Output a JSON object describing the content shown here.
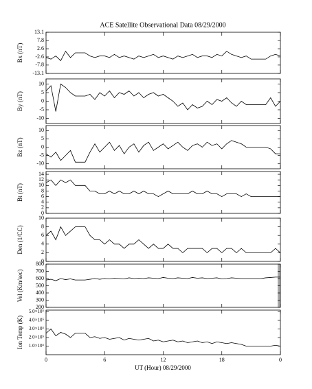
{
  "chart_data": [
    {
      "type": "line",
      "title": "ACE Satellite Observational Data   08/29/2000",
      "ylabel": "Bx (nT)",
      "color": "#000000",
      "x": [
        0,
        0.5,
        1,
        1.5,
        2,
        2.5,
        3,
        3.5,
        4,
        4.5,
        5,
        5.5,
        6,
        6.5,
        7,
        7.5,
        8,
        8.5,
        9,
        9.5,
        10,
        10.5,
        11,
        11.5,
        12,
        12.5,
        13,
        13.5,
        14,
        14.5,
        15,
        15.5,
        16,
        16.5,
        17,
        17.5,
        18,
        18.5,
        19,
        19.5,
        20,
        20.5,
        21,
        21.5,
        22,
        22.5,
        23,
        23.5,
        24
      ],
      "values": [
        -3,
        -4,
        -2,
        -5,
        1,
        -3,
        0,
        0,
        0,
        -2,
        -3,
        -2,
        -2,
        -3,
        -1,
        -3,
        -2,
        -3,
        -4,
        -2,
        -3,
        -2,
        -1,
        -3,
        -2,
        -3,
        -4,
        -2,
        -3,
        -2,
        -1,
        -3,
        -2,
        -2,
        -3,
        -1,
        -2,
        1,
        -1,
        -2,
        -3,
        -2,
        -4,
        -4,
        -4,
        -4,
        -2,
        -1,
        -2
      ],
      "xlim": [
        0,
        24
      ],
      "xticks": [
        0,
        6,
        12,
        18,
        {
          "value": 24,
          "label": "0"
        }
      ],
      "ylim": [
        -13.1,
        13.1
      ],
      "yticks": [
        13.1,
        7.8,
        2.6,
        -2.6,
        -7.8,
        -13.1
      ]
    },
    {
      "type": "line",
      "ylabel": "By (nT)",
      "color": "#000000",
      "x": [
        0,
        0.5,
        1,
        1.5,
        2,
        2.5,
        3,
        3.5,
        4,
        4.5,
        5,
        5.5,
        6,
        6.5,
        7,
        7.5,
        8,
        8.5,
        9,
        9.5,
        10,
        10.5,
        11,
        11.5,
        12,
        12.5,
        13,
        13.5,
        14,
        14.5,
        15,
        15.5,
        16,
        16.5,
        17,
        17.5,
        18,
        18.5,
        19,
        19.5,
        20,
        20.5,
        21,
        21.5,
        22,
        22.5,
        23,
        23.5,
        24
      ],
      "values": [
        6,
        9,
        -6,
        10,
        8,
        5,
        3,
        3,
        3,
        4,
        1,
        5,
        3,
        6,
        2,
        5,
        4,
        6,
        3,
        5,
        2,
        4,
        5,
        3,
        4,
        2,
        0,
        -3,
        -1,
        -5,
        -2,
        -4,
        -3,
        0,
        -2,
        1,
        0,
        2,
        -1,
        -3,
        0,
        -2,
        -2,
        -2,
        -2,
        -2,
        2,
        -3,
        0
      ],
      "xlim": [
        0,
        24
      ],
      "xticks": [
        0,
        6,
        12,
        18,
        {
          "value": 24,
          "label": "0"
        }
      ],
      "ylim": [
        -13,
        13
      ],
      "yticks": [
        10,
        5,
        0,
        -5,
        -10
      ]
    },
    {
      "type": "line",
      "ylabel": "Bz (nT)",
      "color": "#000000",
      "x": [
        0,
        0.5,
        1,
        1.5,
        2,
        2.5,
        3,
        3.5,
        4,
        4.5,
        5,
        5.5,
        6,
        6.5,
        7,
        7.5,
        8,
        8.5,
        9,
        9.5,
        10,
        10.5,
        11,
        11.5,
        12,
        12.5,
        13,
        13.5,
        14,
        14.5,
        15,
        15.5,
        16,
        16.5,
        17,
        17.5,
        18,
        18.5,
        19,
        19.5,
        20,
        20.5,
        21,
        21.5,
        22,
        22.5,
        23,
        23.5,
        24
      ],
      "values": [
        -4,
        -6,
        -3,
        -8,
        -5,
        -2,
        -9,
        -9,
        -9,
        -3,
        2,
        -3,
        0,
        3,
        -2,
        1,
        -4,
        0,
        2,
        -3,
        1,
        3,
        -2,
        0,
        2,
        -1,
        1,
        3,
        0,
        -2,
        1,
        2,
        0,
        3,
        1,
        2,
        -1,
        2,
        4,
        3,
        2,
        0,
        0,
        0,
        0,
        0,
        -1,
        -4,
        -4
      ],
      "xlim": [
        0,
        24
      ],
      "xticks": [
        0,
        6,
        12,
        18,
        {
          "value": 24,
          "label": "0"
        }
      ],
      "ylim": [
        -13,
        13
      ],
      "yticks": [
        10,
        5,
        0,
        -5,
        -10
      ]
    },
    {
      "type": "line",
      "ylabel": "Bt (nT)",
      "color": "#000000",
      "x": [
        0,
        0.5,
        1,
        1.5,
        2,
        2.5,
        3,
        3.5,
        4,
        4.5,
        5,
        5.5,
        6,
        6.5,
        7,
        7.5,
        8,
        8.5,
        9,
        9.5,
        10,
        10.5,
        11,
        11.5,
        12,
        12.5,
        13,
        13.5,
        14,
        14.5,
        15,
        15.5,
        16,
        16.5,
        17,
        17.5,
        18,
        18.5,
        19,
        19.5,
        20,
        20.5,
        21,
        21.5,
        22,
        22.5,
        23,
        23.5,
        24
      ],
      "values": [
        11,
        12,
        10,
        12,
        11,
        12,
        10,
        10,
        10,
        8,
        8,
        7,
        7,
        8,
        7,
        8,
        7,
        7,
        8,
        7,
        8,
        7,
        7,
        6,
        7,
        8,
        7,
        7,
        7,
        7,
        8,
        7,
        7,
        8,
        7,
        7,
        6,
        7,
        7,
        7,
        6,
        7,
        6,
        6,
        6,
        6,
        6,
        6,
        6
      ],
      "xlim": [
        0,
        24
      ],
      "xticks": [
        0,
        6,
        12,
        18,
        {
          "value": 24,
          "label": "0"
        }
      ],
      "ylim": [
        0,
        15
      ],
      "yticks": [
        0,
        2,
        4,
        6,
        8,
        10,
        12,
        14
      ]
    },
    {
      "type": "line",
      "ylabel": "Den (1/CC)",
      "color": "#000000",
      "x": [
        0,
        0.5,
        1,
        1.5,
        2,
        2.5,
        3,
        3.5,
        4,
        4.5,
        5,
        5.5,
        6,
        6.5,
        7,
        7.5,
        8,
        8.5,
        9,
        9.5,
        10,
        10.5,
        11,
        11.5,
        12,
        12.5,
        13,
        13.5,
        14,
        14.5,
        15,
        15.5,
        16,
        16.5,
        17,
        17.5,
        18,
        18.5,
        19,
        19.5,
        20,
        20.5,
        21,
        21.5,
        22,
        22.5,
        23,
        23.5,
        24
      ],
      "values": [
        6,
        7,
        5,
        8,
        6,
        7,
        8,
        8,
        8,
        6,
        5,
        5,
        4,
        5,
        4,
        4,
        3,
        4,
        4,
        5,
        4,
        3,
        4,
        3,
        3,
        4,
        3,
        3,
        2,
        3,
        3,
        3,
        3,
        2,
        3,
        3,
        2,
        3,
        3,
        2,
        3,
        2,
        2,
        2,
        2,
        2,
        2,
        3,
        2
      ],
      "xlim": [
        0,
        24
      ],
      "xticks": [
        0,
        6,
        12,
        18,
        {
          "value": 24,
          "label": "0"
        }
      ],
      "ylim": [
        0,
        10
      ],
      "yticks": [
        0,
        2,
        4,
        6,
        8,
        10
      ]
    },
    {
      "type": "line",
      "ylabel": "Vel (Km/sec)",
      "color": "#000000",
      "x": [
        0,
        0.5,
        1,
        1.5,
        2,
        2.5,
        3,
        3.5,
        4,
        4.5,
        5,
        5.5,
        6,
        6.5,
        7,
        7.5,
        8,
        8.5,
        9,
        9.5,
        10,
        10.5,
        11,
        11.5,
        12,
        12.5,
        13,
        13.5,
        14,
        14.5,
        15,
        15.5,
        16,
        16.5,
        17,
        17.5,
        18,
        18.5,
        19,
        19.5,
        20,
        20.5,
        21,
        21.5,
        22,
        22.5,
        23,
        23.5,
        24
      ],
      "values": [
        580,
        590,
        570,
        600,
        585,
        595,
        580,
        580,
        580,
        590,
        600,
        590,
        600,
        595,
        605,
        600,
        595,
        610,
        600,
        605,
        600,
        610,
        605,
        600,
        615,
        605,
        600,
        610,
        605,
        600,
        615,
        605,
        610,
        600,
        605,
        610,
        595,
        600,
        610,
        605,
        600,
        600,
        600,
        600,
        600,
        610,
        615,
        620,
        620
      ],
      "xlim": [
        0,
        24
      ],
      "xticks": [
        0,
        6,
        12,
        18,
        {
          "value": 24,
          "label": "0"
        }
      ],
      "ylim": [
        200,
        800
      ],
      "yticks": [
        200,
        300,
        400,
        500,
        600,
        700,
        800
      ]
    },
    {
      "type": "line",
      "ylabel": "Ion Temp (K)",
      "xlabel": "UT (Hour)   08/29/2000",
      "color": "#000000",
      "x": [
        0,
        0.5,
        1,
        1.5,
        2,
        2.5,
        3,
        3.5,
        4,
        4.5,
        5,
        5.5,
        6,
        6.5,
        7,
        7.5,
        8,
        8.5,
        9,
        9.5,
        10,
        10.5,
        11,
        11.5,
        12,
        12.5,
        13,
        13.5,
        14,
        14.5,
        15,
        15.5,
        16,
        16.5,
        17,
        17.5,
        18,
        18.5,
        19,
        19.5,
        20,
        20.5,
        21,
        21.5,
        22,
        22.5,
        23,
        23.5,
        24
      ],
      "values": [
        250000,
        300000,
        220000,
        260000,
        240000,
        200000,
        250000,
        250000,
        250000,
        200000,
        210000,
        190000,
        200000,
        180000,
        190000,
        200000,
        170000,
        190000,
        180000,
        170000,
        180000,
        190000,
        160000,
        170000,
        150000,
        160000,
        170000,
        150000,
        160000,
        140000,
        150000,
        160000,
        140000,
        150000,
        130000,
        150000,
        140000,
        130000,
        140000,
        130000,
        120000,
        100000,
        100000,
        100000,
        100000,
        100000,
        100000,
        110000,
        100000
      ],
      "xlim": [
        0,
        24
      ],
      "xticks": [
        0,
        6,
        12,
        18,
        {
          "value": 24,
          "label": "0"
        }
      ],
      "ylim": [
        0,
        520000
      ],
      "yticks": [
        {
          "value": 100000,
          "label": "1.0×10⁵"
        },
        {
          "value": 200000,
          "label": "2.0×10⁵"
        },
        {
          "value": 300000,
          "label": "3.0×10⁵"
        },
        {
          "value": 400000,
          "label": "4.0×10⁵"
        },
        {
          "value": 500000,
          "label": "5.0×10⁵"
        }
      ]
    }
  ]
}
